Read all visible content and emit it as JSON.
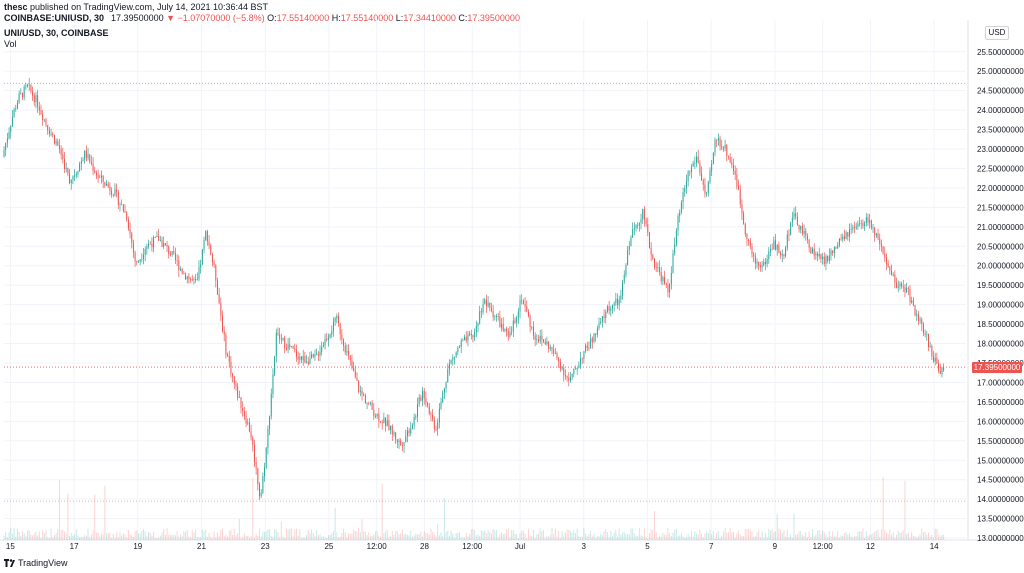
{
  "header": {
    "publisher": "thesc",
    "published_text": "published on TradingView.com, July 14, 2021 10:36:44 BST",
    "symbol_line": "COINBASE:UNIUSD, 30",
    "last": "17.39500000",
    "change": "▼ −1.07070000 (−5.8%)",
    "o_label": "O:",
    "o_value": "17.55140000",
    "h_label": "H:",
    "h_value": "17.55140000",
    "l_label": "L:",
    "l_value": "17.34410000",
    "c_label": "C:",
    "c_value": "17.39500000"
  },
  "legend": {
    "symbol": "UNI/USD, 30, COINBASE",
    "vol": "Vol"
  },
  "currency": "USD",
  "footer": {
    "brand": "TradingView"
  },
  "colors": {
    "up": "#26a69a",
    "down": "#ef5350",
    "grid": "#f0f3fa",
    "axis_text": "#131722"
  },
  "chart_data": {
    "type": "candlestick",
    "symbol": "UNI/USD",
    "interval": "30",
    "exchange": "COINBASE",
    "y_ticks": [
      "13.00000000",
      "13.50000000",
      "14.00000000",
      "14.50000000",
      "15.00000000",
      "15.50000000",
      "16.00000000",
      "16.50000000",
      "17.00000000",
      "17.50000000",
      "18.00000000",
      "18.50000000",
      "19.00000000",
      "19.50000000",
      "20.00000000",
      "20.50000000",
      "21.00000000",
      "21.50000000",
      "22.00000000",
      "22.50000000",
      "23.00000000",
      "23.50000000",
      "24.00000000",
      "24.50000000",
      "25.00000000",
      "25.50000000"
    ],
    "ylim": [
      12.95,
      25.7
    ],
    "x_ticks": [
      "15",
      "17",
      "19",
      "21",
      "23",
      "25",
      "12:00",
      "28",
      "12:00",
      "Jul",
      "3",
      "5",
      "7",
      "9",
      "12:00",
      "12",
      "14"
    ],
    "x_tick_positions": [
      0.0,
      2.0,
      4.0,
      6.0,
      8.0,
      10.0,
      11.5,
      13.0,
      14.5,
      16.0,
      18.0,
      20.0,
      22.0,
      24.0,
      25.5,
      27.0,
      29.0
    ],
    "x_range": [
      -0.2,
      30.0
    ],
    "current_price": "17.39500000",
    "current_price_value": 17.395,
    "reference_high": 24.69,
    "volume_reference": 13.95,
    "price_path": [
      [
        -0.2,
        22.8
      ],
      [
        0.1,
        23.8
      ],
      [
        0.3,
        24.3
      ],
      [
        0.6,
        24.6
      ],
      [
        0.9,
        24.2
      ],
      [
        1.2,
        23.6
      ],
      [
        1.6,
        23.0
      ],
      [
        1.9,
        22.2
      ],
      [
        2.1,
        22.4
      ],
      [
        2.4,
        22.9
      ],
      [
        2.8,
        22.3
      ],
      [
        3.3,
        21.9
      ],
      [
        3.7,
        21.3
      ],
      [
        4.0,
        20.0
      ],
      [
        4.3,
        20.5
      ],
      [
        4.7,
        20.7
      ],
      [
        5.1,
        20.3
      ],
      [
        5.5,
        19.8
      ],
      [
        5.9,
        19.5
      ],
      [
        6.2,
        20.9
      ],
      [
        6.5,
        19.7
      ],
      [
        6.8,
        17.9
      ],
      [
        7.1,
        16.9
      ],
      [
        7.6,
        15.7
      ],
      [
        7.9,
        14.0
      ],
      [
        8.1,
        15.4
      ],
      [
        8.4,
        18.2
      ],
      [
        8.8,
        17.9
      ],
      [
        9.2,
        17.6
      ],
      [
        9.6,
        17.6
      ],
      [
        10.0,
        18.2
      ],
      [
        10.3,
        18.6
      ],
      [
        10.6,
        17.8
      ],
      [
        11.0,
        16.8
      ],
      [
        11.5,
        16.2
      ],
      [
        11.9,
        15.9
      ],
      [
        12.3,
        15.4
      ],
      [
        12.7,
        16.0
      ],
      [
        13.0,
        16.8
      ],
      [
        13.4,
        15.8
      ],
      [
        13.8,
        17.4
      ],
      [
        14.2,
        18.0
      ],
      [
        14.6,
        18.2
      ],
      [
        14.9,
        19.1
      ],
      [
        15.3,
        18.7
      ],
      [
        15.7,
        18.1
      ],
      [
        16.1,
        19.2
      ],
      [
        16.5,
        18.2
      ],
      [
        16.9,
        18.0
      ],
      [
        17.3,
        17.5
      ],
      [
        17.6,
        17.0
      ],
      [
        18.0,
        17.7
      ],
      [
        18.4,
        18.2
      ],
      [
        18.8,
        18.9
      ],
      [
        19.2,
        19.1
      ],
      [
        19.5,
        20.7
      ],
      [
        19.9,
        21.4
      ],
      [
        20.2,
        20.2
      ],
      [
        20.5,
        19.7
      ],
      [
        20.7,
        19.3
      ],
      [
        21.0,
        21.1
      ],
      [
        21.3,
        22.3
      ],
      [
        21.6,
        22.8
      ],
      [
        21.9,
        21.7
      ],
      [
        22.2,
        23.3
      ],
      [
        22.5,
        23.0
      ],
      [
        22.8,
        22.4
      ],
      [
        23.1,
        21.0
      ],
      [
        23.4,
        20.1
      ],
      [
        23.7,
        20.0
      ],
      [
        24.0,
        20.6
      ],
      [
        24.3,
        20.2
      ],
      [
        24.6,
        21.3
      ],
      [
        24.9,
        20.9
      ],
      [
        25.2,
        20.4
      ],
      [
        25.6,
        20.1
      ],
      [
        25.9,
        20.4
      ],
      [
        26.3,
        20.8
      ],
      [
        26.7,
        21.0
      ],
      [
        27.0,
        21.2
      ],
      [
        27.3,
        20.6
      ],
      [
        27.6,
        19.9
      ],
      [
        27.9,
        19.5
      ],
      [
        28.2,
        19.4
      ],
      [
        28.5,
        18.7
      ],
      [
        28.8,
        18.2
      ],
      [
        29.0,
        17.7
      ],
      [
        29.2,
        17.3
      ],
      [
        29.35,
        17.395
      ]
    ]
  }
}
